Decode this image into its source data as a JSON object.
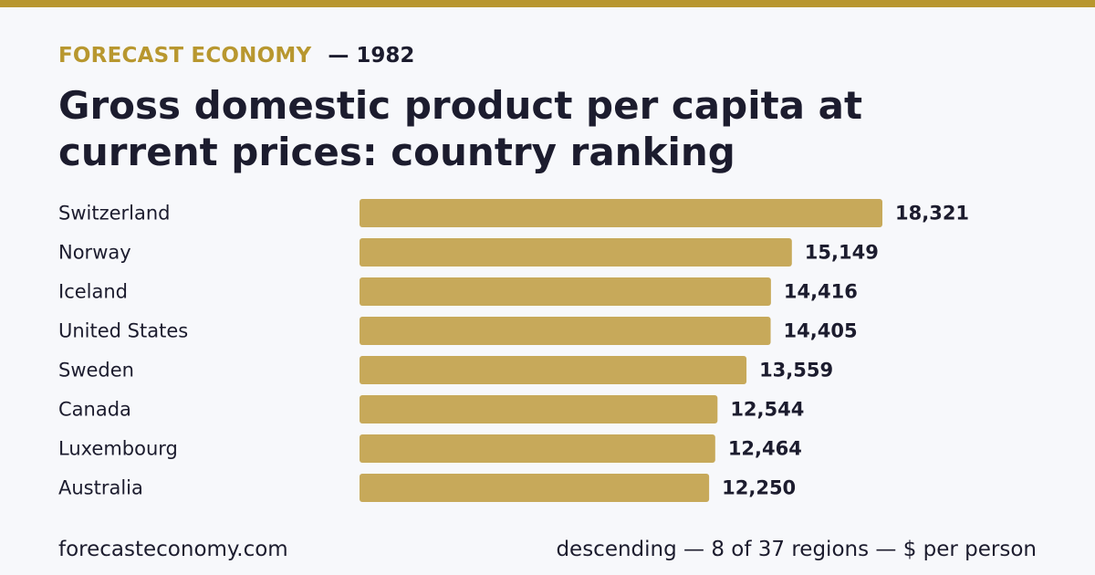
{
  "brand": "FORECAST ECONOMY",
  "year_label": "— 1982",
  "title": "Gross domestic product per capita at current prices: country ranking",
  "footer": {
    "site": "forecasteconomy.com",
    "note": "descending — 8 of 37 regions — $ per person"
  },
  "colors": {
    "accent": "#b8972f",
    "bar": "#c7a95a",
    "text": "#1c1c2e",
    "background": "#f7f8fb"
  },
  "chart_data": {
    "type": "bar",
    "orientation": "horizontal",
    "categories": [
      "Switzerland",
      "Norway",
      "Iceland",
      "United States",
      "Sweden",
      "Canada",
      "Luxembourg",
      "Australia"
    ],
    "values": [
      18321,
      15149,
      14416,
      14405,
      13559,
      12544,
      12464,
      12250
    ],
    "value_labels": [
      "18,321",
      "15,149",
      "14,416",
      "14,405",
      "13,559",
      "12,544",
      "12,464",
      "12,250"
    ],
    "xlim": [
      0,
      18321
    ],
    "grid": false,
    "legend": "none"
  }
}
